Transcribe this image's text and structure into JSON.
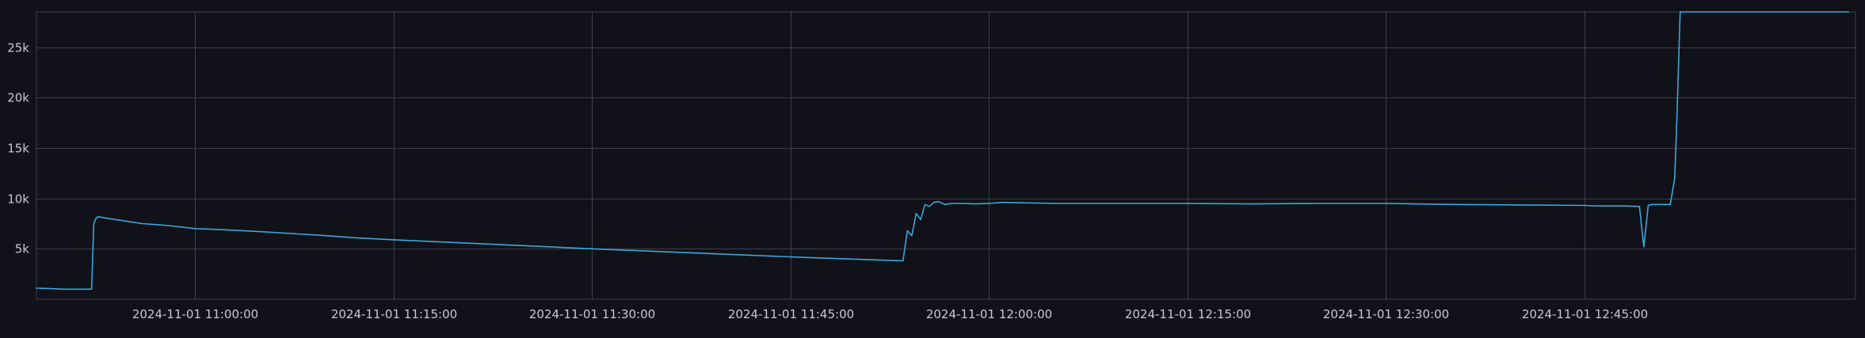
{
  "colors": {
    "background": "#111119",
    "grid": "#3e3f4e",
    "axis_text": "#c8c9d2",
    "series": "#3aa8d8"
  },
  "chart_data": {
    "type": "line",
    "title": "",
    "xlabel": "",
    "ylabel": "",
    "grid": true,
    "legend": "none",
    "x_tick_labels": [
      "2024-11-01 11:00:00",
      "2024-11-01 11:15:00",
      "2024-11-01 11:30:00",
      "2024-11-01 11:45:00",
      "2024-11-01 12:00:00",
      "2024-11-01 12:15:00",
      "2024-11-01 12:30:00",
      "2024-11-01 12:45:00"
    ],
    "y_tick_values": [
      5000,
      10000,
      15000,
      20000,
      25000
    ],
    "y_tick_labels": [
      "5k",
      "10k",
      "15k",
      "20k",
      "25k"
    ],
    "xlim": [
      "2024-11-01 10:48:00",
      "2024-11-01 13:05:30"
    ],
    "ylim": [
      0,
      28500
    ],
    "series": [
      {
        "x": [
          "2024-11-01 10:48:00",
          "2024-11-01 10:49:00",
          "2024-11-01 10:50:00",
          "2024-11-01 10:51:00",
          "2024-11-01 10:52:00",
          "2024-11-01 10:51:30",
          "2024-11-01 10:52:10",
          "2024-11-01 10:52:20",
          "2024-11-01 10:52:30",
          "2024-11-01 10:52:40",
          "2024-11-01 10:53:00",
          "2024-11-01 10:54:00",
          "2024-11-01 10:55:00",
          "2024-11-01 10:56:00",
          "2024-11-01 10:57:00",
          "2024-11-01 10:58:00",
          "2024-11-01 11:00:00",
          "2024-11-01 11:02:00",
          "2024-11-01 11:05:00",
          "2024-11-01 11:10:00",
          "2024-11-01 11:12:00",
          "2024-11-01 11:15:00",
          "2024-11-01 11:30:00",
          "2024-11-01 11:45:00",
          "2024-11-01 11:53:30",
          "2024-11-01 11:53:50",
          "2024-11-01 11:54:10",
          "2024-11-01 11:54:30",
          "2024-11-01 11:54:50",
          "2024-11-01 11:55:10",
          "2024-11-01 11:55:30",
          "2024-11-01 11:55:50",
          "2024-11-01 11:56:10",
          "2024-11-01 11:56:40",
          "2024-11-01 11:57:10",
          "2024-11-01 11:57:40",
          "2024-11-01 11:58:00",
          "2024-11-01 11:59:00",
          "2024-11-01 12:00:00",
          "2024-11-01 12:01:00",
          "2024-11-01 12:05:00",
          "2024-11-01 12:10:00",
          "2024-11-01 12:15:00",
          "2024-11-01 12:20:00",
          "2024-11-01 12:25:00",
          "2024-11-01 12:30:00",
          "2024-11-01 12:35:00",
          "2024-11-01 12:40:00",
          "2024-11-01 12:45:00",
          "2024-11-01 12:46:00",
          "2024-11-01 12:48:00",
          "2024-11-01 12:49:10",
          "2024-11-01 12:49:30",
          "2024-11-01 12:49:50",
          "2024-11-01 12:50:10",
          "2024-11-01 12:51:00",
          "2024-11-01 12:51:30",
          "2024-11-01 12:51:50",
          "2024-11-01 12:52:00",
          "2024-11-01 12:52:15",
          "2024-11-01 13:05:00"
        ],
        "y": [
          1100,
          1050,
          1000,
          1000,
          1000,
          1000,
          1000,
          7500,
          8000,
          8200,
          8100,
          7900,
          7700,
          7500,
          7400,
          7300,
          7000,
          6900,
          6700,
          6300,
          6100,
          5900,
          5000,
          4200,
          3800,
          6800,
          6300,
          8500,
          7900,
          9400,
          9200,
          9600,
          9700,
          9400,
          9500,
          9500,
          9500,
          9450,
          9500,
          9600,
          9500,
          9500,
          9500,
          9450,
          9500,
          9500,
          9400,
          9350,
          9300,
          9250,
          9250,
          9200,
          5200,
          9300,
          9400,
          9400,
          9400,
          12000,
          18000,
          28500,
          28500
        ]
      }
    ]
  }
}
